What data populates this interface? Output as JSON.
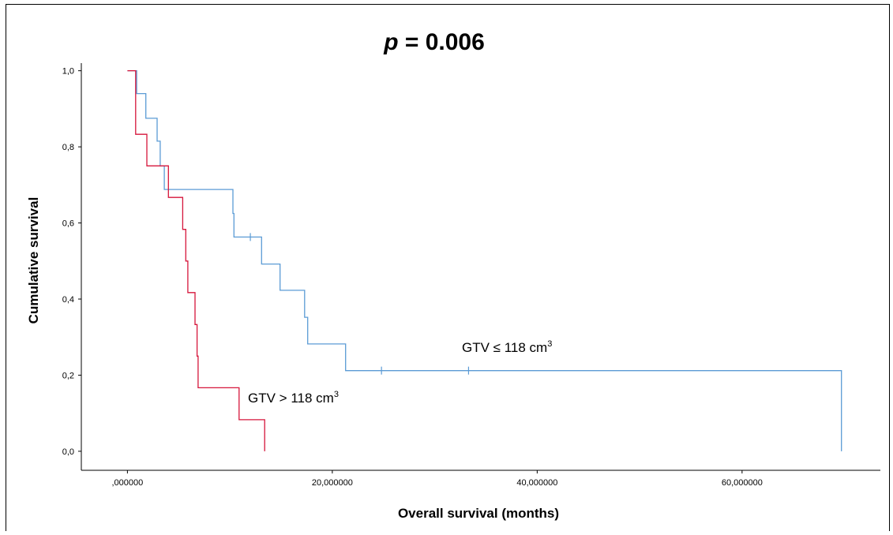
{
  "chart_data": {
    "type": "line",
    "subtype": "kaplan-meier",
    "title_prefix": "p",
    "title_suffix": " = 0.006",
    "xlabel": "Overall survival (months)",
    "ylabel": "Cumulative survival",
    "xlim": [
      -4.5,
      73.5
    ],
    "ylim": [
      -0.05,
      1.02
    ],
    "x_ticks": [
      0,
      20,
      40,
      60
    ],
    "x_tick_labels": [
      ",000000",
      "20,000000",
      "40,000000",
      "60,000000"
    ],
    "y_ticks": [
      0,
      0.2,
      0.4,
      0.6,
      0.8,
      1.0
    ],
    "y_tick_labels": [
      "0,0",
      "0,2",
      "0,4",
      "0,6",
      "0,8",
      "1,0"
    ],
    "grid": false,
    "series": [
      {
        "name": "GTV ≤ 118 cm",
        "name_sup": "3",
        "color": "#5b9bd5",
        "steps": [
          [
            0,
            1.0
          ],
          [
            0.9,
            0.94
          ],
          [
            1.8,
            0.875
          ],
          [
            2.9,
            0.815
          ],
          [
            3.2,
            0.75
          ],
          [
            3.6,
            0.688
          ],
          [
            10.3,
            0.625
          ],
          [
            10.4,
            0.563
          ],
          [
            13.1,
            0.492
          ],
          [
            14.9,
            0.423
          ],
          [
            17.3,
            0.352
          ],
          [
            17.6,
            0.282
          ],
          [
            21.3,
            0.212
          ],
          [
            69.7,
            0.0
          ]
        ],
        "censored": [
          [
            12.0,
            0.563
          ],
          [
            24.8,
            0.212
          ],
          [
            33.3,
            0.212
          ]
        ]
      },
      {
        "name": "GTV > 118 cm",
        "name_sup": "3",
        "color": "#d6163b",
        "steps": [
          [
            0,
            1.0
          ],
          [
            0.8,
            0.833
          ],
          [
            1.9,
            0.75
          ],
          [
            4.0,
            0.667
          ],
          [
            5.4,
            0.583
          ],
          [
            5.7,
            0.5
          ],
          [
            5.9,
            0.417
          ],
          [
            6.6,
            0.333
          ],
          [
            6.8,
            0.25
          ],
          [
            6.9,
            0.167
          ],
          [
            10.9,
            0.083
          ],
          [
            13.4,
            0.0
          ]
        ],
        "censored": []
      }
    ]
  }
}
